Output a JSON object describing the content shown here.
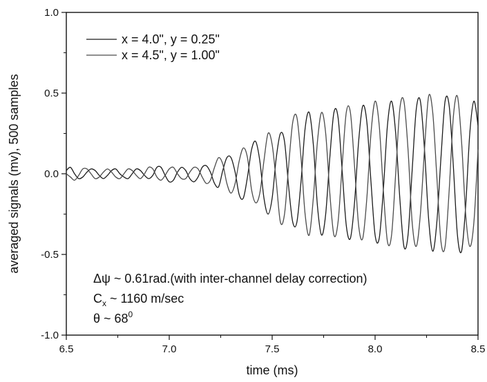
{
  "chart_data": {
    "type": "line",
    "title": "",
    "xlabel": "time (ms)",
    "ylabel": "averaged signals (mv), 500 samples",
    "xlim": [
      6.5,
      8.5
    ],
    "ylim": [
      -1.0,
      1.0
    ],
    "x_ticks": [
      "6.5",
      "7.0",
      "7.5",
      "8.0",
      "8.5"
    ],
    "y_ticks": [
      "-1.0",
      "-0.5",
      "0.0",
      "0.5",
      "1.0"
    ],
    "grid": false,
    "legend_position": "top-left",
    "series": [
      {
        "name": "x = 4.0\", y = 0.25\"",
        "color": "#1a1a1a",
        "x": [
          6.5,
          6.52,
          6.54,
          6.56,
          6.58,
          6.6,
          6.62,
          6.64,
          6.66,
          6.68,
          6.7,
          6.72,
          6.74,
          6.76,
          6.78,
          6.8,
          6.82,
          6.84,
          6.86,
          6.88,
          6.9,
          6.92,
          6.94,
          6.96,
          6.98,
          7.0,
          7.02,
          7.04,
          7.06,
          7.08,
          7.1,
          7.12,
          7.14,
          7.16,
          7.18,
          7.2,
          7.22,
          7.24,
          7.26,
          7.28,
          7.3,
          7.32,
          7.34,
          7.36,
          7.38,
          7.4,
          7.42,
          7.44,
          7.46,
          7.48,
          7.5,
          7.52,
          7.54,
          7.56,
          7.58,
          7.6,
          7.62,
          7.64,
          7.66,
          7.68,
          7.7,
          7.72,
          7.74,
          7.76,
          7.78,
          7.8,
          7.82,
          7.84,
          7.86,
          7.88,
          7.9,
          7.92,
          7.94,
          7.96,
          7.98,
          8.0,
          8.02,
          8.04,
          8.06,
          8.08,
          8.1,
          8.12,
          8.14,
          8.16,
          8.18,
          8.2,
          8.22,
          8.24,
          8.26,
          8.28,
          8.3,
          8.32,
          8.34,
          8.36,
          8.38,
          8.4,
          8.42,
          8.44,
          8.46,
          8.48,
          8.5
        ],
        "y": [
          0.02,
          0.04,
          0.0,
          -0.03,
          -0.02,
          0.01,
          0.03,
          0.02,
          -0.01,
          -0.03,
          -0.01,
          0.02,
          0.03,
          0.0,
          -0.02,
          -0.03,
          0.0,
          0.03,
          0.02,
          -0.01,
          -0.03,
          -0.01,
          0.04,
          0.04,
          -0.01,
          -0.05,
          -0.04,
          0.01,
          0.04,
          0.02,
          -0.03,
          -0.05,
          -0.02,
          0.04,
          0.05,
          0.01,
          -0.06,
          -0.08,
          0.02,
          0.1,
          0.1,
          0.01,
          -0.13,
          -0.15,
          -0.02,
          0.15,
          0.2,
          0.08,
          -0.15,
          -0.25,
          -0.15,
          0.1,
          0.25,
          0.2,
          -0.08,
          -0.3,
          -0.3,
          -0.05,
          0.28,
          0.38,
          0.18,
          -0.2,
          -0.38,
          -0.25,
          0.1,
          0.38,
          0.35,
          0.02,
          -0.32,
          -0.4,
          -0.18,
          0.2,
          0.42,
          0.32,
          -0.05,
          -0.38,
          -0.4,
          -0.1,
          0.3,
          0.45,
          0.25,
          -0.15,
          -0.45,
          -0.38,
          0.02,
          0.4,
          0.45,
          0.15,
          -0.28,
          -0.48,
          -0.3,
          0.1,
          0.45,
          0.42,
          0.05,
          -0.38,
          -0.48,
          -0.2,
          0.25,
          0.45,
          0.3
        ]
      },
      {
        "name": "x = 4.5\", y = 1.00\"",
        "color": "#4a4a4a",
        "x": [
          6.5,
          6.52,
          6.54,
          6.56,
          6.58,
          6.6,
          6.62,
          6.64,
          6.66,
          6.68,
          6.7,
          6.72,
          6.74,
          6.76,
          6.78,
          6.8,
          6.82,
          6.84,
          6.86,
          6.88,
          6.9,
          6.92,
          6.94,
          6.96,
          6.98,
          7.0,
          7.02,
          7.04,
          7.06,
          7.08,
          7.1,
          7.12,
          7.14,
          7.16,
          7.18,
          7.2,
          7.22,
          7.24,
          7.26,
          7.28,
          7.3,
          7.32,
          7.34,
          7.36,
          7.38,
          7.4,
          7.42,
          7.44,
          7.46,
          7.48,
          7.5,
          7.52,
          7.54,
          7.56,
          7.58,
          7.6,
          7.62,
          7.64,
          7.66,
          7.68,
          7.7,
          7.72,
          7.74,
          7.76,
          7.78,
          7.8,
          7.82,
          7.84,
          7.86,
          7.88,
          7.9,
          7.92,
          7.94,
          7.96,
          7.98,
          8.0,
          8.02,
          8.04,
          8.06,
          8.08,
          8.1,
          8.12,
          8.14,
          8.16,
          8.18,
          8.2,
          8.22,
          8.24,
          8.26,
          8.28,
          8.3,
          8.32,
          8.34,
          8.36,
          8.38,
          8.4,
          8.42,
          8.44,
          8.46,
          8.48,
          8.5
        ],
        "y": [
          0.0,
          -0.02,
          -0.04,
          -0.01,
          0.03,
          0.03,
          0.0,
          -0.03,
          -0.02,
          0.01,
          0.03,
          0.01,
          -0.02,
          -0.03,
          0.0,
          0.03,
          0.02,
          -0.01,
          -0.03,
          0.0,
          0.04,
          0.03,
          -0.02,
          -0.04,
          -0.01,
          0.03,
          0.04,
          0.0,
          -0.03,
          -0.03,
          0.01,
          0.04,
          0.03,
          -0.02,
          -0.06,
          -0.04,
          0.04,
          0.1,
          0.06,
          -0.06,
          -0.12,
          -0.06,
          0.08,
          0.16,
          0.1,
          -0.1,
          -0.18,
          -0.12,
          0.08,
          0.25,
          0.18,
          -0.05,
          -0.3,
          -0.25,
          0.05,
          0.32,
          0.35,
          0.1,
          -0.25,
          -0.38,
          -0.15,
          0.2,
          0.38,
          0.25,
          -0.12,
          -0.38,
          -0.3,
          0.05,
          0.38,
          0.38,
          0.05,
          -0.32,
          -0.4,
          -0.15,
          0.25,
          0.45,
          0.3,
          -0.1,
          -0.42,
          -0.38,
          0.0,
          0.4,
          0.45,
          0.15,
          -0.3,
          -0.45,
          -0.25,
          0.15,
          0.48,
          0.38,
          -0.02,
          -0.42,
          -0.45,
          -0.1,
          0.35,
          0.48,
          0.2,
          -0.25,
          -0.45,
          -0.3,
          0.15
        ]
      }
    ],
    "annotations": [
      {
        "main": "Δψ ~ 0.61rad.(with inter-channel delay correction)",
        "sub": "",
        "sup": ""
      },
      {
        "main": "C",
        "sub": "x",
        "after": " ~ 1160 m/sec",
        "sup": ""
      },
      {
        "main": "θ ~ 68",
        "sub": "",
        "sup": "0"
      }
    ]
  }
}
